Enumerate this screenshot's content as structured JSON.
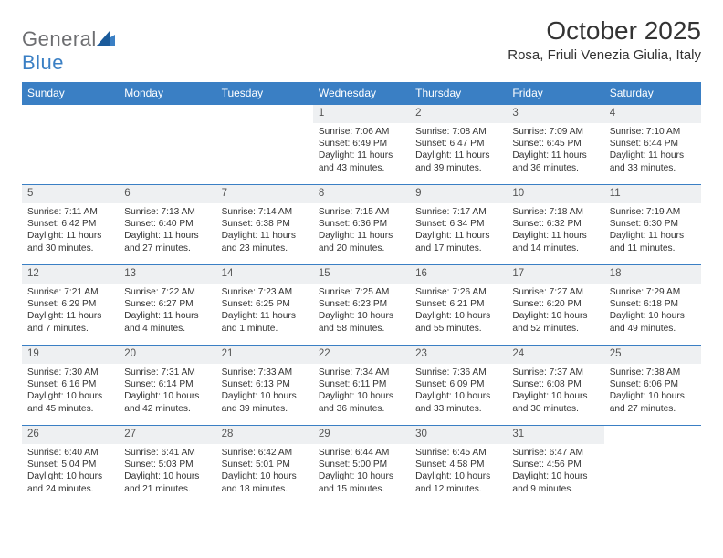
{
  "logo": {
    "text1": "General",
    "text2": "Blue"
  },
  "title": "October 2025",
  "location": "Rosa, Friuli Venezia Giulia, Italy",
  "colors": {
    "header_bg": "#3a7fc4",
    "header_text": "#ffffff",
    "daynum_bg": "#eef0f2",
    "row_border": "#3a7fc4",
    "body_text": "#333333",
    "logo_gray": "#6d6e71",
    "logo_blue": "#3a7fc4"
  },
  "weekdays": [
    "Sunday",
    "Monday",
    "Tuesday",
    "Wednesday",
    "Thursday",
    "Friday",
    "Saturday"
  ],
  "weeks": [
    {
      "nums": [
        "",
        "",
        "",
        "1",
        "2",
        "3",
        "4"
      ],
      "cells": [
        {
          "empty": true
        },
        {
          "empty": true
        },
        {
          "empty": true
        },
        {
          "sunrise": "Sunrise: 7:06 AM",
          "sunset": "Sunset: 6:49 PM",
          "daylight": "Daylight: 11 hours and 43 minutes."
        },
        {
          "sunrise": "Sunrise: 7:08 AM",
          "sunset": "Sunset: 6:47 PM",
          "daylight": "Daylight: 11 hours and 39 minutes."
        },
        {
          "sunrise": "Sunrise: 7:09 AM",
          "sunset": "Sunset: 6:45 PM",
          "daylight": "Daylight: 11 hours and 36 minutes."
        },
        {
          "sunrise": "Sunrise: 7:10 AM",
          "sunset": "Sunset: 6:44 PM",
          "daylight": "Daylight: 11 hours and 33 minutes."
        }
      ]
    },
    {
      "nums": [
        "5",
        "6",
        "7",
        "8",
        "9",
        "10",
        "11"
      ],
      "cells": [
        {
          "sunrise": "Sunrise: 7:11 AM",
          "sunset": "Sunset: 6:42 PM",
          "daylight": "Daylight: 11 hours and 30 minutes."
        },
        {
          "sunrise": "Sunrise: 7:13 AM",
          "sunset": "Sunset: 6:40 PM",
          "daylight": "Daylight: 11 hours and 27 minutes."
        },
        {
          "sunrise": "Sunrise: 7:14 AM",
          "sunset": "Sunset: 6:38 PM",
          "daylight": "Daylight: 11 hours and 23 minutes."
        },
        {
          "sunrise": "Sunrise: 7:15 AM",
          "sunset": "Sunset: 6:36 PM",
          "daylight": "Daylight: 11 hours and 20 minutes."
        },
        {
          "sunrise": "Sunrise: 7:17 AM",
          "sunset": "Sunset: 6:34 PM",
          "daylight": "Daylight: 11 hours and 17 minutes."
        },
        {
          "sunrise": "Sunrise: 7:18 AM",
          "sunset": "Sunset: 6:32 PM",
          "daylight": "Daylight: 11 hours and 14 minutes."
        },
        {
          "sunrise": "Sunrise: 7:19 AM",
          "sunset": "Sunset: 6:30 PM",
          "daylight": "Daylight: 11 hours and 11 minutes."
        }
      ]
    },
    {
      "nums": [
        "12",
        "13",
        "14",
        "15",
        "16",
        "17",
        "18"
      ],
      "cells": [
        {
          "sunrise": "Sunrise: 7:21 AM",
          "sunset": "Sunset: 6:29 PM",
          "daylight": "Daylight: 11 hours and 7 minutes."
        },
        {
          "sunrise": "Sunrise: 7:22 AM",
          "sunset": "Sunset: 6:27 PM",
          "daylight": "Daylight: 11 hours and 4 minutes."
        },
        {
          "sunrise": "Sunrise: 7:23 AM",
          "sunset": "Sunset: 6:25 PM",
          "daylight": "Daylight: 11 hours and 1 minute."
        },
        {
          "sunrise": "Sunrise: 7:25 AM",
          "sunset": "Sunset: 6:23 PM",
          "daylight": "Daylight: 10 hours and 58 minutes."
        },
        {
          "sunrise": "Sunrise: 7:26 AM",
          "sunset": "Sunset: 6:21 PM",
          "daylight": "Daylight: 10 hours and 55 minutes."
        },
        {
          "sunrise": "Sunrise: 7:27 AM",
          "sunset": "Sunset: 6:20 PM",
          "daylight": "Daylight: 10 hours and 52 minutes."
        },
        {
          "sunrise": "Sunrise: 7:29 AM",
          "sunset": "Sunset: 6:18 PM",
          "daylight": "Daylight: 10 hours and 49 minutes."
        }
      ]
    },
    {
      "nums": [
        "19",
        "20",
        "21",
        "22",
        "23",
        "24",
        "25"
      ],
      "cells": [
        {
          "sunrise": "Sunrise: 7:30 AM",
          "sunset": "Sunset: 6:16 PM",
          "daylight": "Daylight: 10 hours and 45 minutes."
        },
        {
          "sunrise": "Sunrise: 7:31 AM",
          "sunset": "Sunset: 6:14 PM",
          "daylight": "Daylight: 10 hours and 42 minutes."
        },
        {
          "sunrise": "Sunrise: 7:33 AM",
          "sunset": "Sunset: 6:13 PM",
          "daylight": "Daylight: 10 hours and 39 minutes."
        },
        {
          "sunrise": "Sunrise: 7:34 AM",
          "sunset": "Sunset: 6:11 PM",
          "daylight": "Daylight: 10 hours and 36 minutes."
        },
        {
          "sunrise": "Sunrise: 7:36 AM",
          "sunset": "Sunset: 6:09 PM",
          "daylight": "Daylight: 10 hours and 33 minutes."
        },
        {
          "sunrise": "Sunrise: 7:37 AM",
          "sunset": "Sunset: 6:08 PM",
          "daylight": "Daylight: 10 hours and 30 minutes."
        },
        {
          "sunrise": "Sunrise: 7:38 AM",
          "sunset": "Sunset: 6:06 PM",
          "daylight": "Daylight: 10 hours and 27 minutes."
        }
      ]
    },
    {
      "nums": [
        "26",
        "27",
        "28",
        "29",
        "30",
        "31",
        ""
      ],
      "cells": [
        {
          "sunrise": "Sunrise: 6:40 AM",
          "sunset": "Sunset: 5:04 PM",
          "daylight": "Daylight: 10 hours and 24 minutes."
        },
        {
          "sunrise": "Sunrise: 6:41 AM",
          "sunset": "Sunset: 5:03 PM",
          "daylight": "Daylight: 10 hours and 21 minutes."
        },
        {
          "sunrise": "Sunrise: 6:42 AM",
          "sunset": "Sunset: 5:01 PM",
          "daylight": "Daylight: 10 hours and 18 minutes."
        },
        {
          "sunrise": "Sunrise: 6:44 AM",
          "sunset": "Sunset: 5:00 PM",
          "daylight": "Daylight: 10 hours and 15 minutes."
        },
        {
          "sunrise": "Sunrise: 6:45 AM",
          "sunset": "Sunset: 4:58 PM",
          "daylight": "Daylight: 10 hours and 12 minutes."
        },
        {
          "sunrise": "Sunrise: 6:47 AM",
          "sunset": "Sunset: 4:56 PM",
          "daylight": "Daylight: 10 hours and 9 minutes."
        },
        {
          "empty": true
        }
      ]
    }
  ]
}
